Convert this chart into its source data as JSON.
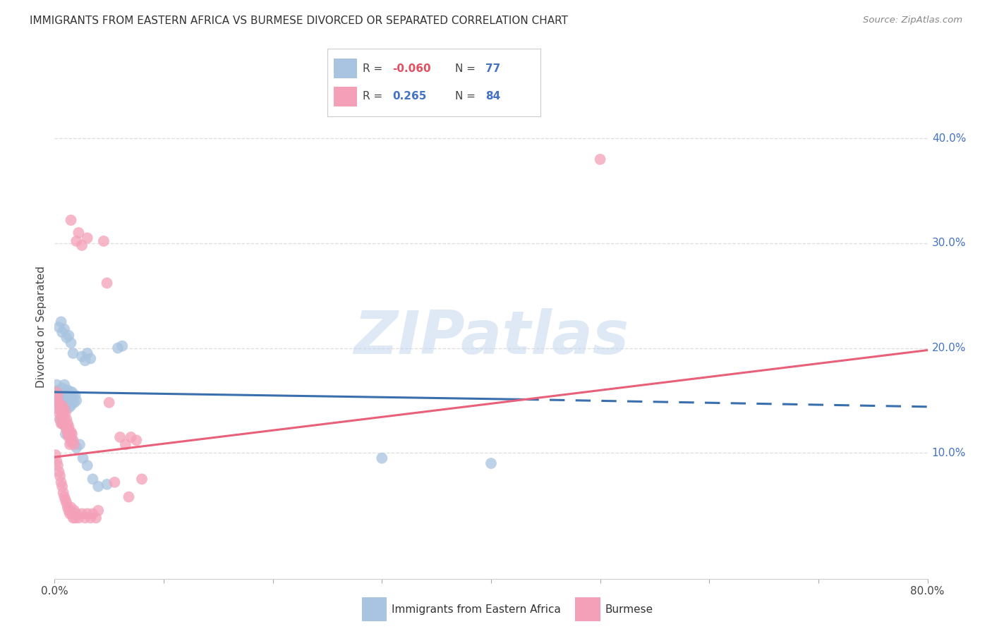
{
  "title": "IMMIGRANTS FROM EASTERN AFRICA VS BURMESE DIVORCED OR SEPARATED CORRELATION CHART",
  "source": "Source: ZipAtlas.com",
  "ylabel": "Divorced or Separated",
  "xlim": [
    0.0,
    0.8
  ],
  "ylim": [
    -0.02,
    0.46
  ],
  "xticks": [
    0.0,
    0.1,
    0.2,
    0.3,
    0.4,
    0.5,
    0.6,
    0.7,
    0.8
  ],
  "xticklabels": [
    "0.0%",
    "",
    "",
    "",
    "",
    "",
    "",
    "",
    "80.0%"
  ],
  "yticks_right": [
    0.1,
    0.2,
    0.3,
    0.4
  ],
  "yticklabels_right": [
    "10.0%",
    "20.0%",
    "30.0%",
    "40.0%"
  ],
  "watermark": "ZIPatlas",
  "blue_color": "#a8c4e0",
  "pink_color": "#f4a0b8",
  "blue_line_color": "#3a6fad",
  "pink_line_color": "#e8607a",
  "blue_scatter": [
    [
      0.001,
      0.155
    ],
    [
      0.002,
      0.152
    ],
    [
      0.002,
      0.165
    ],
    [
      0.003,
      0.148
    ],
    [
      0.003,
      0.158
    ],
    [
      0.004,
      0.16
    ],
    [
      0.004,
      0.145
    ],
    [
      0.005,
      0.155
    ],
    [
      0.005,
      0.15
    ],
    [
      0.006,
      0.158
    ],
    [
      0.006,
      0.148
    ],
    [
      0.007,
      0.162
    ],
    [
      0.007,
      0.145
    ],
    [
      0.008,
      0.155
    ],
    [
      0.008,
      0.15
    ],
    [
      0.009,
      0.165
    ],
    [
      0.009,
      0.142
    ],
    [
      0.01,
      0.158
    ],
    [
      0.01,
      0.148
    ],
    [
      0.011,
      0.155
    ],
    [
      0.011,
      0.145
    ],
    [
      0.012,
      0.16
    ],
    [
      0.012,
      0.148
    ],
    [
      0.013,
      0.155
    ],
    [
      0.013,
      0.143
    ],
    [
      0.014,
      0.158
    ],
    [
      0.014,
      0.15
    ],
    [
      0.015,
      0.152
    ],
    [
      0.015,
      0.145
    ],
    [
      0.016,
      0.158
    ],
    [
      0.016,
      0.148
    ],
    [
      0.017,
      0.155
    ],
    [
      0.018,
      0.148
    ],
    [
      0.019,
      0.155
    ],
    [
      0.02,
      0.15
    ],
    [
      0.004,
      0.22
    ],
    [
      0.006,
      0.225
    ],
    [
      0.007,
      0.215
    ],
    [
      0.009,
      0.218
    ],
    [
      0.011,
      0.21
    ],
    [
      0.013,
      0.212
    ],
    [
      0.015,
      0.205
    ],
    [
      0.017,
      0.195
    ],
    [
      0.025,
      0.192
    ],
    [
      0.028,
      0.188
    ],
    [
      0.03,
      0.195
    ],
    [
      0.033,
      0.19
    ],
    [
      0.058,
      0.2
    ],
    [
      0.062,
      0.202
    ],
    [
      0.005,
      0.132
    ],
    [
      0.007,
      0.128
    ],
    [
      0.01,
      0.118
    ],
    [
      0.013,
      0.122
    ],
    [
      0.016,
      0.112
    ],
    [
      0.02,
      0.105
    ],
    [
      0.023,
      0.108
    ],
    [
      0.026,
      0.095
    ],
    [
      0.03,
      0.088
    ],
    [
      0.035,
      0.075
    ],
    [
      0.04,
      0.068
    ],
    [
      0.048,
      0.07
    ],
    [
      0.3,
      0.095
    ],
    [
      0.4,
      0.09
    ]
  ],
  "pink_scatter": [
    [
      0.001,
      0.152
    ],
    [
      0.002,
      0.148
    ],
    [
      0.002,
      0.158
    ],
    [
      0.003,
      0.142
    ],
    [
      0.003,
      0.155
    ],
    [
      0.004,
      0.148
    ],
    [
      0.004,
      0.138
    ],
    [
      0.005,
      0.145
    ],
    [
      0.005,
      0.132
    ],
    [
      0.006,
      0.14
    ],
    [
      0.006,
      0.128
    ],
    [
      0.007,
      0.145
    ],
    [
      0.007,
      0.135
    ],
    [
      0.008,
      0.138
    ],
    [
      0.008,
      0.128
    ],
    [
      0.009,
      0.142
    ],
    [
      0.009,
      0.132
    ],
    [
      0.01,
      0.138
    ],
    [
      0.01,
      0.125
    ],
    [
      0.011,
      0.132
    ],
    [
      0.011,
      0.122
    ],
    [
      0.012,
      0.128
    ],
    [
      0.012,
      0.118
    ],
    [
      0.013,
      0.125
    ],
    [
      0.013,
      0.115
    ],
    [
      0.014,
      0.118
    ],
    [
      0.014,
      0.108
    ],
    [
      0.015,
      0.12
    ],
    [
      0.015,
      0.11
    ],
    [
      0.016,
      0.118
    ],
    [
      0.017,
      0.112
    ],
    [
      0.018,
      0.108
    ],
    [
      0.001,
      0.098
    ],
    [
      0.002,
      0.092
    ],
    [
      0.003,
      0.088
    ],
    [
      0.004,
      0.082
    ],
    [
      0.005,
      0.078
    ],
    [
      0.006,
      0.072
    ],
    [
      0.007,
      0.068
    ],
    [
      0.008,
      0.062
    ],
    [
      0.009,
      0.058
    ],
    [
      0.01,
      0.055
    ],
    [
      0.011,
      0.052
    ],
    [
      0.012,
      0.048
    ],
    [
      0.013,
      0.045
    ],
    [
      0.014,
      0.042
    ],
    [
      0.015,
      0.048
    ],
    [
      0.016,
      0.042
    ],
    [
      0.017,
      0.038
    ],
    [
      0.018,
      0.045
    ],
    [
      0.019,
      0.038
    ],
    [
      0.02,
      0.042
    ],
    [
      0.022,
      0.038
    ],
    [
      0.025,
      0.042
    ],
    [
      0.028,
      0.038
    ],
    [
      0.03,
      0.042
    ],
    [
      0.033,
      0.038
    ],
    [
      0.035,
      0.042
    ],
    [
      0.038,
      0.038
    ],
    [
      0.04,
      0.045
    ],
    [
      0.015,
      0.322
    ],
    [
      0.02,
      0.302
    ],
    [
      0.022,
      0.31
    ],
    [
      0.025,
      0.298
    ],
    [
      0.03,
      0.305
    ],
    [
      0.045,
      0.302
    ],
    [
      0.048,
      0.262
    ],
    [
      0.05,
      0.148
    ],
    [
      0.06,
      0.115
    ],
    [
      0.065,
      0.108
    ],
    [
      0.07,
      0.115
    ],
    [
      0.075,
      0.112
    ],
    [
      0.055,
      0.072
    ],
    [
      0.068,
      0.058
    ],
    [
      0.08,
      0.075
    ],
    [
      0.5,
      0.38
    ]
  ],
  "blue_line_solid": [
    [
      0.0,
      0.158
    ],
    [
      0.43,
      0.151
    ]
  ],
  "blue_line_dash": [
    [
      0.43,
      0.151
    ],
    [
      0.8,
      0.144
    ]
  ],
  "pink_line": [
    [
      0.0,
      0.096
    ],
    [
      0.8,
      0.198
    ]
  ],
  "background_color": "#ffffff",
  "grid_color": "#dddddd"
}
